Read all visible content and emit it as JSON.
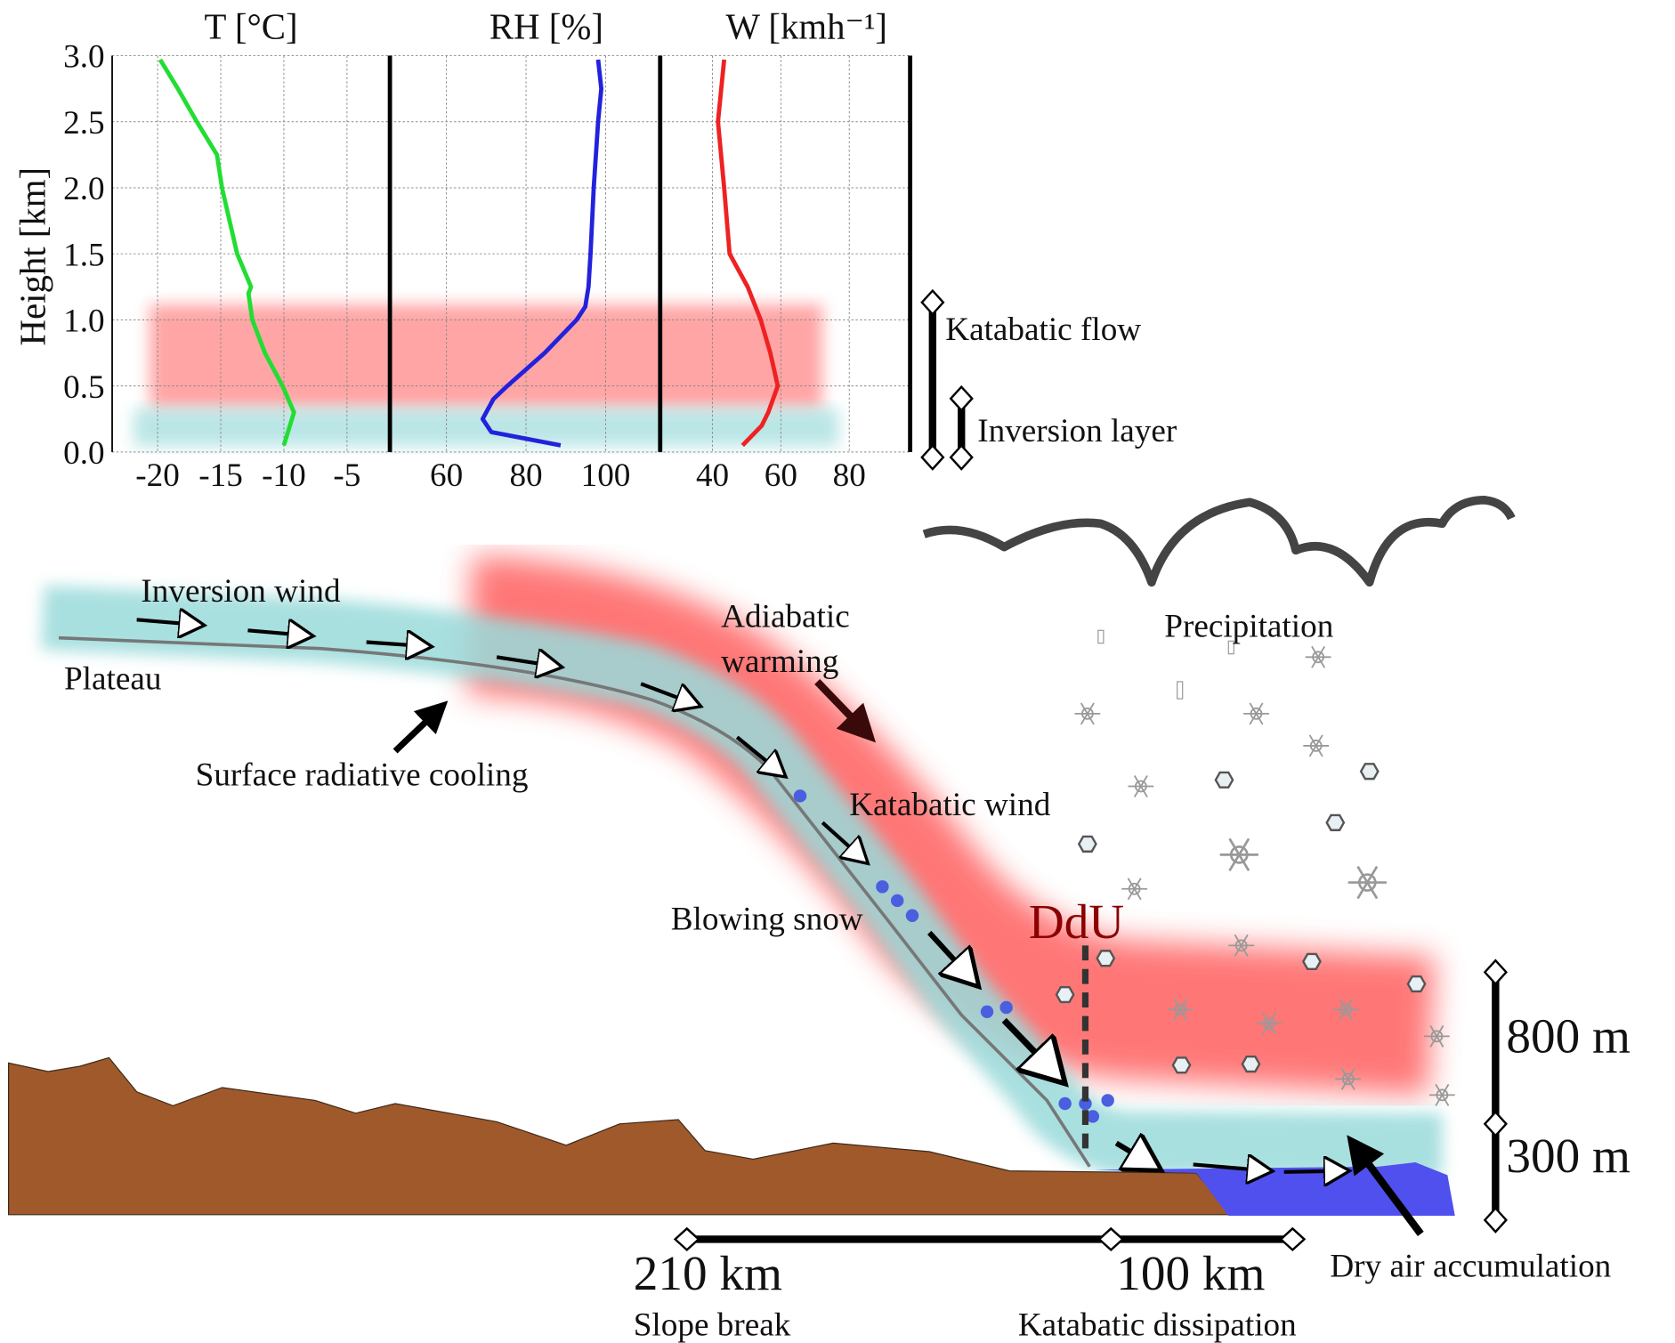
{
  "profiles": {
    "ylabel": "Height [km]",
    "ylim": [
      0,
      3
    ],
    "yticks": [
      {
        "value": 0,
        "label": "0.0"
      },
      {
        "value": 0.5,
        "label": "0.5"
      },
      {
        "value": 1,
        "label": "1.0"
      },
      {
        "value": 1.5,
        "label": "1.5"
      },
      {
        "value": 2,
        "label": "2.0"
      },
      {
        "value": 2.5,
        "label": "2.5"
      },
      {
        "value": 3,
        "label": "3.0"
      }
    ],
    "panels": [
      {
        "title": "T [°C]",
        "color": "#22dd33",
        "xlim": [
          -23.6,
          -1.6
        ],
        "xticks": [
          -20,
          -15,
          -10,
          -5
        ],
        "heights": [
          0.05,
          0.3,
          0.5,
          0.75,
          1.0,
          1.2,
          1.25,
          1.5,
          1.75,
          2.0,
          2.25,
          2.5,
          2.75,
          2.97
        ],
        "values": [
          -10,
          -9.2,
          -10.1,
          -11.5,
          -12.5,
          -12.8,
          -12.6,
          -13.7,
          -14.3,
          -14.9,
          -15.3,
          -16.9,
          -18.4,
          -19.8
        ]
      },
      {
        "title": "RH [%]",
        "color": "#2222dd",
        "xlim": [
          45.8,
          113.7
        ],
        "xticks": [
          60,
          80,
          100
        ],
        "heights": [
          0.05,
          0.15,
          0.25,
          0.4,
          0.5,
          0.75,
          1.0,
          1.1,
          1.25,
          1.5,
          2.0,
          2.5,
          2.75,
          2.97
        ],
        "values": [
          88.7,
          71.3,
          69.1,
          71.8,
          75.3,
          84.7,
          92.7,
          94.9,
          95.7,
          96.2,
          97,
          98.1,
          98.9,
          98.1
        ]
      },
      {
        "title": "W [kmh⁻¹]",
        "color": "#ee2222",
        "xlim": [
          24.7,
          97.8
        ],
        "xticks": [
          40,
          60,
          80
        ],
        "heights": [
          0.05,
          0.2,
          0.3,
          0.5,
          0.75,
          1.0,
          1.25,
          1.5,
          2.0,
          2.5,
          2.97
        ],
        "values": [
          48.8,
          54.4,
          56.3,
          59.1,
          56.9,
          54.1,
          50.3,
          45,
          43.4,
          41.6,
          43.4
        ]
      }
    ]
  },
  "labels": [
    "Katabatic flow",
    "Inversion layer",
    "Inversion wind",
    "Plateau",
    "Surface radiative cooling",
    "Adiabatic",
    "warming",
    "Katabatic wind",
    "Blowing snow",
    "Precipitation",
    "DdU",
    "800 m",
    "300 m",
    "210 km",
    "100 km",
    "Slope break",
    "Katabatic dissipation",
    "Dry air accumulation"
  ]
}
